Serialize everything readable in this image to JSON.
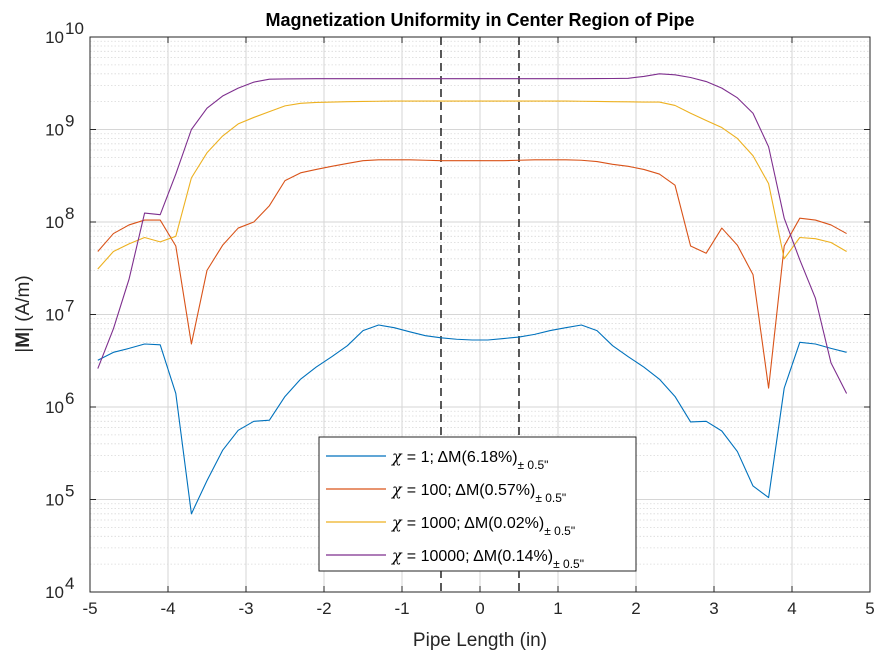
{
  "chart_data": {
    "type": "line",
    "title": "Magnetization Uniformity in Center Region of Pipe",
    "xlabel": "Pipe Length (in)",
    "ylabel_bold": "M",
    "ylabel_rest": "| (A/m)",
    "ylabel_bar": "|",
    "xlim": [
      -5,
      5
    ],
    "ylim": [
      10000,
      10000000000
    ],
    "yscale": "log",
    "grid": true,
    "minor_grid": true,
    "legend_position": "bottom-center",
    "x_ticks": [
      "-5",
      "-4",
      "-3",
      "-2",
      "-1",
      "0",
      "1",
      "2",
      "3",
      "4",
      "5"
    ],
    "y_tick_base": "10",
    "y_tick_exponents": [
      "4",
      "5",
      "6",
      "7",
      "8",
      "9",
      "10"
    ],
    "vlines": [
      -0.5,
      0.5
    ],
    "x": [
      -4.9,
      -4.7,
      -4.5,
      -4.3,
      -4.1,
      -3.9,
      -3.7,
      -3.5,
      -3.3,
      -3.1,
      -2.9,
      -2.7,
      -2.5,
      -2.3,
      -2.1,
      -1.9,
      -1.7,
      -1.5,
      -1.3,
      -1.1,
      -0.9,
      -0.7,
      -0.5,
      -0.3,
      -0.1,
      0.1,
      0.3,
      0.5,
      0.7,
      0.9,
      1.1,
      1.3,
      1.5,
      1.7,
      1.9,
      2.1,
      2.3,
      2.5,
      2.7,
      2.9,
      3.1,
      3.3,
      3.5,
      3.7,
      3.9,
      4.1,
      4.3,
      4.5,
      4.7
    ],
    "series": [
      {
        "name_main": "= 1; ΔM(6.18%)",
        "name_sub": "± 0.5\"",
        "color": "#0072BD",
        "values": [
          3200000,
          3900000,
          4300000,
          4800000,
          4700000,
          1400000,
          70000,
          160000,
          340000,
          560000,
          700000,
          720000,
          1300000,
          2000000,
          2700000,
          3500000,
          4600000,
          6700000,
          7700000,
          7200000,
          6500000,
          5900000,
          5600000,
          5400000,
          5300000,
          5300000,
          5500000,
          5700000,
          6100000,
          6700000,
          7200000,
          7700000,
          6700000,
          4600000,
          3500000,
          2700000,
          2000000,
          1300000,
          690000,
          700000,
          550000,
          330000,
          140000,
          105000,
          1600000,
          5000000,
          4800000,
          4300000,
          3900000
        ]
      },
      {
        "name_main": "= 100; ΔM(0.57%)",
        "name_sub": "± 0.5\"",
        "color": "#D95319",
        "values": [
          48000000,
          75000000,
          93000000,
          105000000,
          105000000,
          55000000,
          4800000,
          30000000,
          56000000,
          86000000,
          100000000,
          150000000,
          280000000,
          340000000,
          370000000,
          400000000,
          430000000,
          460000000,
          470000000,
          470000000,
          470000000,
          465000000,
          460000000,
          460000000,
          460000000,
          460000000,
          460000000,
          465000000,
          470000000,
          470000000,
          470000000,
          465000000,
          450000000,
          420000000,
          400000000,
          370000000,
          330000000,
          250000000,
          55000000,
          46000000,
          86000000,
          56000000,
          27000000,
          1600000,
          55000000,
          110000000,
          105000000,
          93000000,
          75000000
        ]
      },
      {
        "name_main": "= 1000; ΔM(0.02%)",
        "name_sub": "± 0.5\"",
        "color": "#EDB120",
        "values": [
          31000000,
          48000000,
          58000000,
          68000000,
          61000000,
          70000000,
          300000000,
          560000000,
          850000000,
          1150000000,
          1350000000,
          1560000000,
          1800000000,
          1920000000,
          1960000000,
          1980000000,
          2000000000,
          2010000000,
          2020000000,
          2030000000,
          2030000000,
          2030000000,
          2030000000,
          2030000000,
          2030000000,
          2030000000,
          2030000000,
          2030000000,
          2030000000,
          2030000000,
          2030000000,
          2020000000,
          2010000000,
          2000000000,
          1990000000,
          1980000000,
          1980000000,
          1820000000,
          1500000000,
          1250000000,
          1050000000,
          800000000,
          520000000,
          260000000,
          40000000,
          68000000,
          66000000,
          60000000,
          48000000
        ]
      },
      {
        "name_main": "= 10000; ΔM(0.14%)",
        "name_sub": "± 0.5\"",
        "color": "#7E2F8E",
        "values": [
          2600000,
          7000000,
          24000000,
          125000000,
          120000000,
          330000000,
          1000000000,
          1700000000,
          2300000000,
          2800000000,
          3250000000,
          3500000000,
          3520000000,
          3530000000,
          3540000000,
          3540000000,
          3540000000,
          3540000000,
          3540000000,
          3540000000,
          3540000000,
          3540000000,
          3540000000,
          3540000000,
          3540000000,
          3540000000,
          3540000000,
          3540000000,
          3540000000,
          3540000000,
          3540000000,
          3540000000,
          3550000000,
          3560000000,
          3580000000,
          3750000000,
          4000000000,
          3900000000,
          3650000000,
          3300000000,
          2800000000,
          2200000000,
          1500000000,
          650000000,
          110000000,
          39000000,
          15000000,
          3000000,
          1400000
        ]
      }
    ]
  }
}
